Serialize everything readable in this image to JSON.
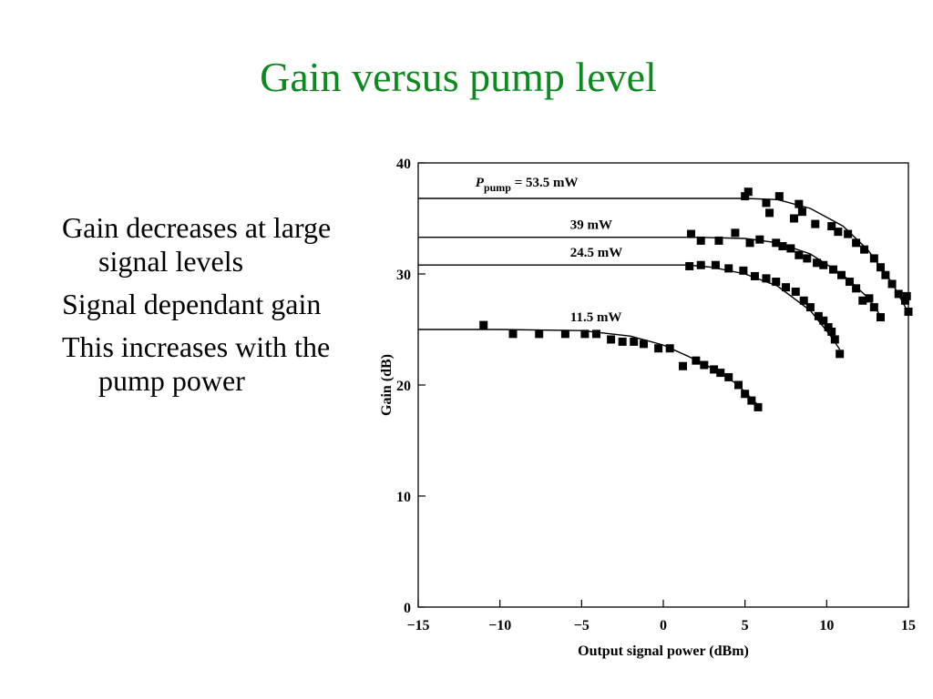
{
  "slide": {
    "title": "Gain versus pump level",
    "bullets": [
      "Gain decreases at large signal levels",
      "Signal dependant gain",
      "This increases with the pump power"
    ]
  },
  "colors": {
    "title": "#0b8a1e",
    "text": "#000000",
    "marker": "#000000"
  },
  "chart_data": {
    "type": "scatter",
    "xlabel": "Output signal power (dBm)",
    "ylabel": "Gain (dB)",
    "xlim": [
      -15,
      15
    ],
    "ylim": [
      0,
      40
    ],
    "xticks": [
      -15,
      -10,
      -5,
      0,
      5,
      10,
      15
    ],
    "yticks": [
      0,
      10,
      20,
      30,
      40
    ],
    "xtick_labels": [
      "−15",
      "−10",
      "−5",
      "0",
      "5",
      "10",
      "15"
    ],
    "ytick_labels": [
      "0",
      "10",
      "20",
      "30",
      "40"
    ],
    "series": [
      {
        "label_value": "53.5 mW",
        "label_prefix": "P",
        "label_sub": "pump",
        "label_eq": " = ",
        "curve": [
          [
            -15,
            36.8
          ],
          [
            5,
            36.8
          ],
          [
            7,
            36.7
          ],
          [
            9,
            35.9
          ],
          [
            11,
            34.3
          ],
          [
            12.5,
            32.2
          ],
          [
            14,
            29.2
          ],
          [
            15,
            26.5
          ]
        ],
        "points": [
          [
            5,
            37
          ],
          [
            5.2,
            37.4
          ],
          [
            6.3,
            36.4
          ],
          [
            7.1,
            37
          ],
          [
            8.3,
            36.3
          ],
          [
            6.5,
            35.5
          ],
          [
            8,
            35
          ],
          [
            8.5,
            35.6
          ],
          [
            9.3,
            34.5
          ],
          [
            10.3,
            34.3
          ],
          [
            10.7,
            33.8
          ],
          [
            11.3,
            33.6
          ],
          [
            11.8,
            32.8
          ],
          [
            12.3,
            32.2
          ],
          [
            12.9,
            31.4
          ],
          [
            13.3,
            30.6
          ],
          [
            13.6,
            29.9
          ],
          [
            14,
            29.1
          ],
          [
            14.4,
            28.2
          ],
          [
            14.8,
            27.6
          ],
          [
            15,
            26.6
          ],
          [
            14.9,
            28
          ]
        ]
      },
      {
        "label_value": "39 mW",
        "curve": [
          [
            -15,
            33.3
          ],
          [
            2,
            33.3
          ],
          [
            5,
            33.2
          ],
          [
            7,
            32.8
          ],
          [
            9,
            31.8
          ],
          [
            11,
            29.9
          ],
          [
            12.5,
            27.9
          ],
          [
            13.5,
            25.8
          ]
        ],
        "points": [
          [
            1.7,
            33.6
          ],
          [
            2.3,
            33
          ],
          [
            3.4,
            33
          ],
          [
            4.4,
            33.7
          ],
          [
            5.3,
            32.8
          ],
          [
            5.9,
            33.1
          ],
          [
            6.9,
            32.8
          ],
          [
            7.3,
            32.5
          ],
          [
            7.8,
            32.3
          ],
          [
            8.3,
            31.7
          ],
          [
            8.8,
            31.4
          ],
          [
            9.4,
            31
          ],
          [
            9.8,
            30.8
          ],
          [
            10.4,
            30.4
          ],
          [
            10.9,
            29.9
          ],
          [
            11.4,
            29.3
          ],
          [
            11.8,
            28.7
          ],
          [
            12.2,
            27.6
          ],
          [
            12.6,
            27.8
          ],
          [
            12.9,
            27
          ],
          [
            13.3,
            26.1
          ]
        ]
      },
      {
        "label_value": "24.5 mW",
        "curve": [
          [
            -15,
            30.8
          ],
          [
            1.5,
            30.8
          ],
          [
            3,
            30.6
          ],
          [
            5,
            30
          ],
          [
            7,
            28.9
          ],
          [
            9,
            26.7
          ],
          [
            10.2,
            24.5
          ],
          [
            10.8,
            23.2
          ]
        ],
        "points": [
          [
            1.6,
            30.7
          ],
          [
            2.3,
            30.8
          ],
          [
            3.2,
            30.8
          ],
          [
            4,
            30.5
          ],
          [
            4.9,
            30.3
          ],
          [
            5.6,
            29.8
          ],
          [
            6.3,
            29.6
          ],
          [
            6.9,
            29.3
          ],
          [
            7.5,
            28.8
          ],
          [
            8.1,
            28.4
          ],
          [
            8.6,
            27.6
          ],
          [
            9,
            27
          ],
          [
            9.5,
            26.2
          ],
          [
            9.8,
            25.8
          ],
          [
            10.1,
            25.2
          ],
          [
            10.3,
            24.8
          ],
          [
            10.5,
            24.1
          ],
          [
            10.8,
            22.8
          ]
        ]
      },
      {
        "label_value": "11.5 mW",
        "curve": [
          [
            -15,
            25
          ],
          [
            -10,
            25
          ],
          [
            -5,
            24.9
          ],
          [
            -2,
            24.4
          ],
          [
            0,
            23.6
          ],
          [
            1.5,
            22.6
          ],
          [
            3,
            21.5
          ],
          [
            4.5,
            20.1
          ],
          [
            5.8,
            18.2
          ]
        ],
        "points": [
          [
            -11,
            25.4
          ],
          [
            -9.2,
            24.6
          ],
          [
            -7.6,
            24.6
          ],
          [
            -6,
            24.6
          ],
          [
            -4.8,
            24.6
          ],
          [
            -4.1,
            24.6
          ],
          [
            -3.2,
            24.1
          ],
          [
            -2.5,
            23.9
          ],
          [
            -1.8,
            23.9
          ],
          [
            -1.2,
            23.7
          ],
          [
            -0.3,
            23.3
          ],
          [
            0.4,
            23.3
          ],
          [
            1.2,
            21.7
          ],
          [
            2,
            22.2
          ],
          [
            2.5,
            21.8
          ],
          [
            3.1,
            21.4
          ],
          [
            3.5,
            21.1
          ],
          [
            4,
            20.7
          ],
          [
            4.6,
            20
          ],
          [
            5,
            19.2
          ],
          [
            5.4,
            18.6
          ],
          [
            5.8,
            18
          ]
        ]
      }
    ]
  }
}
